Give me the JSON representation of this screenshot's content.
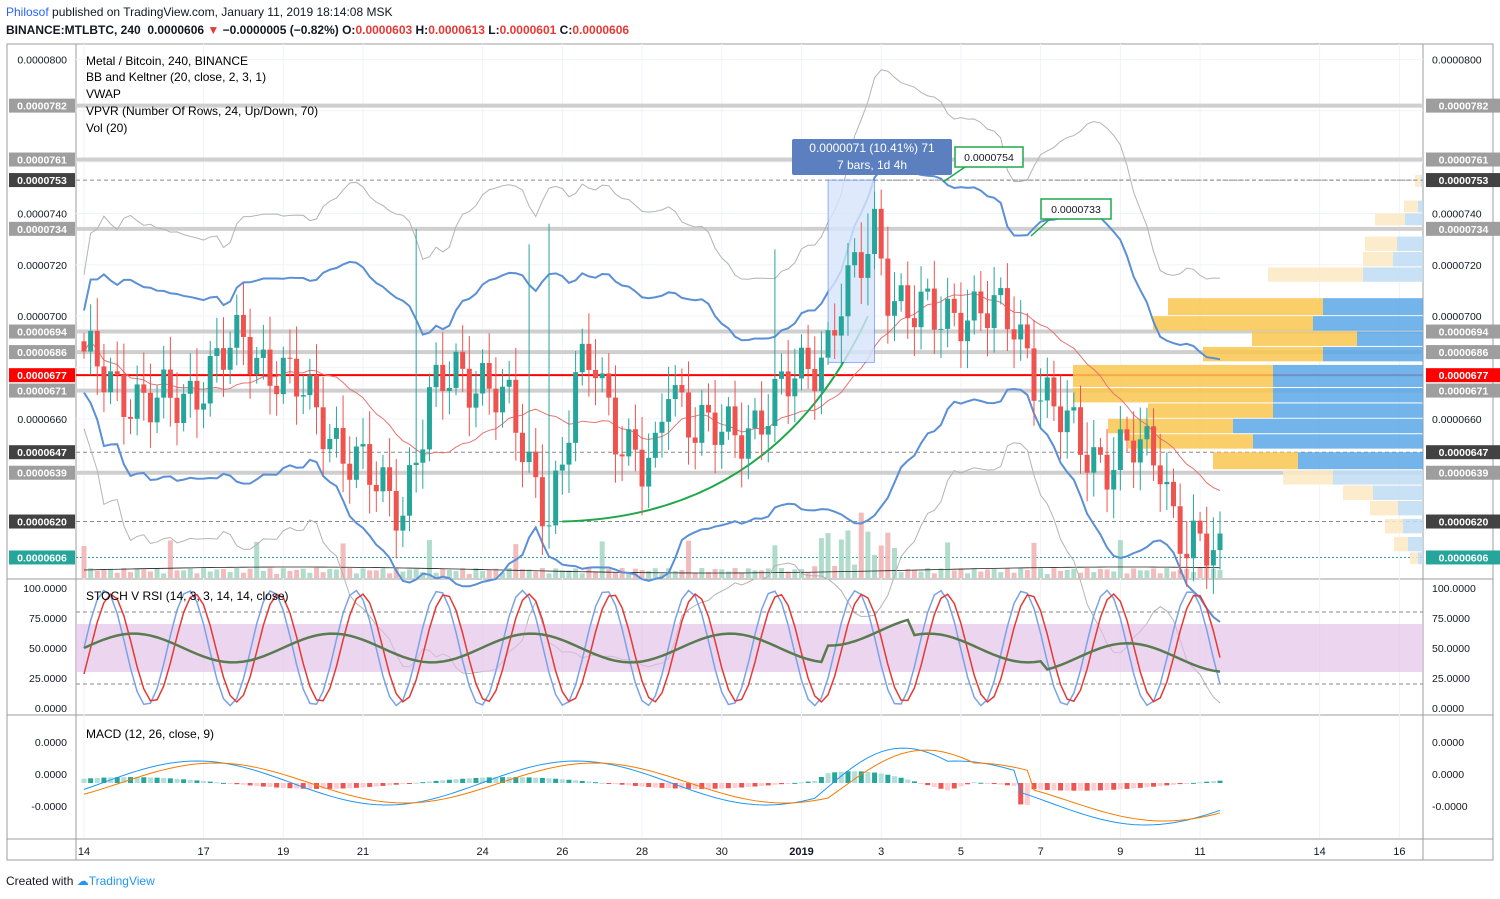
{
  "header": {
    "user": "Philosof",
    "published": "published on TradingView.com, January 11, 2019 18:14:08 MSK",
    "symbol": "BINANCE:MTLBTC, 240",
    "last": "0.0000606",
    "change": "−0.0000005 (−0.82%)",
    "o_label": "O:",
    "o": "0.0000603",
    "h_label": "H:",
    "h": "0.0000613",
    "l_label": "L:",
    "l": "0.0000601",
    "c_label": "C:",
    "c": "0.0000606"
  },
  "legend": {
    "title": "Metal / Bitcoin, 240, BINANCE",
    "bb": "BB and Keltner (20, close, 2, 3, 1)",
    "vwap": "VWAP",
    "vpvr": "VPVR (Number Of Rows, 24, Up/Down, 70)",
    "vol": "Vol (20)"
  },
  "measure": {
    "line1": "0.0000071 (10.41%) 71",
    "line2": "7 bars, 1d 4h",
    "callout1": "0.0000754",
    "callout2": "0.0000733"
  },
  "colors": {
    "up": "#26a69a",
    "down": "#ef5350",
    "bb": "#5b8fd6",
    "kc": "#b4b4b4",
    "stoch_k": "#7aa2e8",
    "stoch_d": "#e53935",
    "rsi": "#5a7a4f",
    "macd": "#2196f3",
    "signal": "#f57c00",
    "hline": "#d0d0d0",
    "redline": "#ff0000"
  },
  "axis": {
    "price_ticks": [
      "0.0000800",
      "0.0000740",
      "0.0000720",
      "0.0000700",
      "0.0000660"
    ],
    "price_badges": [
      {
        "v": "0.0000782",
        "style": "gray"
      },
      {
        "v": "0.0000761",
        "style": "gray"
      },
      {
        "v": "0.0000753",
        "style": "dark"
      },
      {
        "v": "0.0000734",
        "style": "gray"
      },
      {
        "v": "0.0000694",
        "style": "gray"
      },
      {
        "v": "0.0000686",
        "style": "gray"
      },
      {
        "v": "0.0000677",
        "style": "red"
      },
      {
        "v": "0.0000671",
        "style": "gray"
      },
      {
        "v": "0.0000647",
        "style": "dark"
      },
      {
        "v": "0.0000639",
        "style": "gray"
      },
      {
        "v": "0.0000620",
        "style": "dark"
      },
      {
        "v": "0.0000606",
        "style": "teal"
      }
    ],
    "x_labels": [
      {
        "t": "14",
        "i": 0
      },
      {
        "t": "17",
        "i": 18
      },
      {
        "t": "19",
        "i": 30
      },
      {
        "t": "21",
        "i": 42
      },
      {
        "t": "24",
        "i": 60
      },
      {
        "t": "26",
        "i": 72
      },
      {
        "t": "28",
        "i": 84
      },
      {
        "t": "30",
        "i": 96
      },
      {
        "t": "2019",
        "i": 108
      },
      {
        "t": "3",
        "i": 120
      },
      {
        "t": "5",
        "i": 132
      },
      {
        "t": "7",
        "i": 144
      },
      {
        "t": "9",
        "i": 156
      },
      {
        "t": "11",
        "i": 168
      },
      {
        "t": "14",
        "i": 186
      },
      {
        "t": "16",
        "i": 198
      }
    ],
    "stoch_ticks": [
      "100.0000",
      "75.0000",
      "50.0000",
      "25.0000",
      "0.0000"
    ],
    "macd_ticks": [
      "0.0000",
      "0.0000",
      "-0.0000"
    ]
  },
  "stoch": {
    "label": "STOCH V RSI (14, 3, 3, 14, 14, close)"
  },
  "macd": {
    "label": "MACD (12, 26, close, 9)"
  },
  "footer": {
    "created": "Created with",
    "brand": "TradingView"
  },
  "chart_data": {
    "type": "candlestick",
    "title": "Metal / Bitcoin, 240, BINANCE",
    "unit": "BTC",
    "ylim": [
      5.98e-05,
      8.06e-05
    ],
    "candles_count": 172,
    "keypoints": [
      [
        0,
        6.82e-05
      ],
      [
        6,
        6.72e-05
      ],
      [
        10,
        6.64e-05
      ],
      [
        14,
        6.67e-05
      ],
      [
        18,
        6.76e-05
      ],
      [
        24,
        6.9e-05
      ],
      [
        30,
        6.77e-05
      ],
      [
        36,
        6.6e-05
      ],
      [
        40,
        6.45e-05
      ],
      [
        44,
        6.33e-05
      ],
      [
        48,
        6.28e-05
      ],
      [
        52,
        6.65e-05
      ],
      [
        56,
        6.79e-05
      ],
      [
        60,
        6.76e-05
      ],
      [
        64,
        6.62e-05
      ],
      [
        68,
        6.36e-05
      ],
      [
        70,
        6.26e-05
      ],
      [
        72,
        6.4e-05
      ],
      [
        74,
        6.72e-05
      ],
      [
        77,
        6.84e-05
      ],
      [
        80,
        6.58e-05
      ],
      [
        84,
        6.38e-05
      ],
      [
        86,
        6.42e-05
      ],
      [
        88,
        6.78e-05
      ],
      [
        92,
        6.58e-05
      ],
      [
        96,
        6.52e-05
      ],
      [
        100,
        6.58e-05
      ],
      [
        104,
        6.66e-05
      ],
      [
        108,
        6.78e-05
      ],
      [
        112,
        6.9e-05
      ],
      [
        114,
        7.06e-05
      ],
      [
        117,
        7.18e-05
      ],
      [
        119,
        7.34e-05
      ],
      [
        121,
        7.14e-05
      ],
      [
        124,
        7.02e-05
      ],
      [
        128,
        6.98e-05
      ],
      [
        132,
        7.04e-05
      ],
      [
        136,
        7e-05
      ],
      [
        140,
        6.98e-05
      ],
      [
        142,
        6.88e-05
      ],
      [
        144,
        6.72e-05
      ],
      [
        146,
        6.62e-05
      ],
      [
        150,
        6.5e-05
      ],
      [
        154,
        6.44e-05
      ],
      [
        158,
        6.47e-05
      ],
      [
        162,
        6.46e-05
      ],
      [
        164,
        6.24e-05
      ],
      [
        166,
        6.1e-05
      ],
      [
        170,
        6.06e-05
      ],
      [
        171,
        6.06e-05
      ]
    ],
    "horizontal_levels": [
      7.82e-05,
      7.61e-05,
      7.53e-05,
      7.34e-05,
      6.94e-05,
      6.86e-05,
      6.77e-05,
      6.71e-05,
      6.47e-05,
      6.39e-05,
      6.2e-05,
      6.06e-05
    ],
    "stoch_rsi": {
      "ylim": [
        0,
        100
      ],
      "levels": [
        80,
        20
      ],
      "band": [
        30,
        70
      ]
    },
    "macd": {
      "ylim": [
        -1,
        1
      ]
    }
  }
}
